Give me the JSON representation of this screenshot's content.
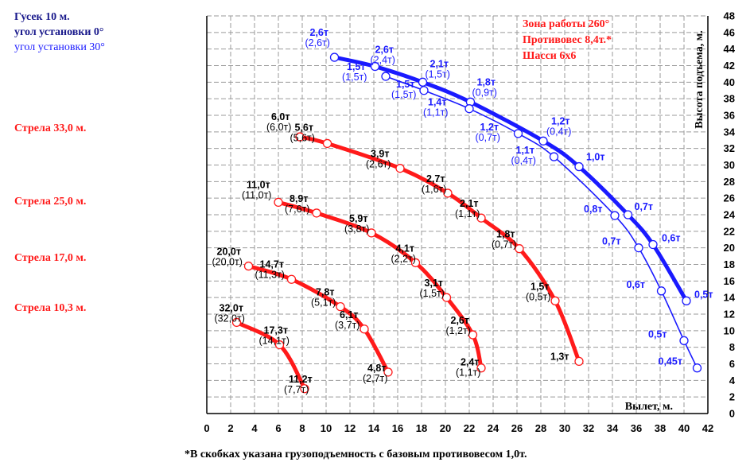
{
  "legend_left": {
    "jib_title": "Гусек 10 м.",
    "jib_angle_0": "угол установки 0°",
    "jib_angle_30": "угол установки 30°",
    "boom_33": "Стрела 33,0 м.",
    "boom_25": "Стрела 25,0 м.",
    "boom_17": "Стрела 17,0 м.",
    "boom_10": "Стрела 10,3 м."
  },
  "legend_right": {
    "zone": "Зона работы 260°",
    "counterweight": "Противовес 8,4т.*",
    "chassis": "Шасси 6х6"
  },
  "footnote": "*В скобках указана грузоподъемность с базовым противовесом 1,0т.",
  "colors": {
    "boom": "#ff1a1a",
    "jib": "#1a1aff",
    "grid": "#9a9a9a",
    "legend_blue": "#1a1a8c"
  },
  "chart_data": {
    "type": "line",
    "xlabel": "Вылет, м.",
    "ylabel": "Высота подъема, м.",
    "xlim": [
      0,
      42
    ],
    "ylim": [
      0,
      48
    ],
    "xticks": [
      0,
      2,
      4,
      6,
      8,
      10,
      12,
      14,
      16,
      18,
      20,
      22,
      24,
      26,
      28,
      30,
      32,
      34,
      36,
      38,
      40,
      42
    ],
    "yticks": [
      0,
      2,
      4,
      6,
      8,
      10,
      12,
      14,
      16,
      18,
      20,
      22,
      24,
      26,
      28,
      30,
      32,
      34,
      36,
      38,
      40,
      42,
      44,
      46,
      48
    ],
    "grid": true,
    "series": [
      {
        "name": "Стрела 10,3 м.",
        "color": "#ff1a1a",
        "width": 5,
        "points": [
          {
            "x": 2.5,
            "y": 11.0,
            "load": "32,0т",
            "alt": "(32,0т)"
          },
          {
            "x": 6.1,
            "y": 8.3,
            "load": "17,3т",
            "alt": "(14,1т)"
          },
          {
            "x": 8.2,
            "y": 3.0,
            "load": "11,2т",
            "alt": "(7,7т)"
          }
        ]
      },
      {
        "name": "Стрела 17,0 м.",
        "color": "#ff1a1a",
        "width": 5,
        "points": [
          {
            "x": 3.5,
            "y": 17.8,
            "load": "20,0т",
            "alt": "(20,0т)"
          },
          {
            "x": 7.1,
            "y": 16.2,
            "load": "14,7т",
            "alt": "(11,3т)"
          },
          {
            "x": 11.2,
            "y": 12.9,
            "load": "7,8т",
            "alt": "(5,1т)"
          },
          {
            "x": 13.2,
            "y": 10.2,
            "load": "6,1т",
            "alt": "(3,7т)"
          },
          {
            "x": 15.2,
            "y": 5.0,
            "load": "4,8т",
            "alt": "(2,7т)"
          }
        ]
      },
      {
        "name": "Стрела 25,0 м.",
        "color": "#ff1a1a",
        "width": 5,
        "points": [
          {
            "x": 6.0,
            "y": 25.5,
            "load": "11,0т",
            "alt": "(11,0т)"
          },
          {
            "x": 9.2,
            "y": 24.2,
            "load": "8,9т",
            "alt": "(7,6т)"
          },
          {
            "x": 13.8,
            "y": 21.8,
            "load": "5,9т",
            "alt": "(3,8т)"
          },
          {
            "x": 17.5,
            "y": 18.2,
            "load": "4,1т",
            "alt": "(2,2т)"
          },
          {
            "x": 20.1,
            "y": 14.0,
            "load": "3,1т",
            "alt": "(1,5т)"
          },
          {
            "x": 22.3,
            "y": 9.5,
            "load": "2,6т",
            "alt": "(1,2т)"
          },
          {
            "x": 23.0,
            "y": 5.5,
            "load": "2,4т",
            "alt": "(1,1т)"
          }
        ]
      },
      {
        "name": "Стрела 33,0 м.",
        "color": "#ff1a1a",
        "width": 5,
        "points": [
          {
            "x": 7.8,
            "y": 33.4,
            "load": "6,0т",
            "alt": "(6,0т)"
          },
          {
            "x": 10.1,
            "y": 32.6,
            "load": "5,6т",
            "alt": "(5,6т)"
          },
          {
            "x": 16.2,
            "y": 29.6,
            "load": "3,9т",
            "alt": "(2,6т)"
          },
          {
            "x": 20.2,
            "y": 26.6,
            "load": "2,7т",
            "alt": "(1,6т)"
          },
          {
            "x": 23.0,
            "y": 23.6,
            "load": "2,1т",
            "alt": "(1,1т)"
          },
          {
            "x": 26.2,
            "y": 19.9,
            "load": "1,8т",
            "alt": "(0,7т)"
          },
          {
            "x": 29.2,
            "y": 13.6,
            "load": "1,5т",
            "alt": "(0,5т)"
          },
          {
            "x": 31.2,
            "y": 6.3,
            "load": "1,3т",
            "alt": ""
          }
        ]
      },
      {
        "name": "угол установки 0°",
        "color": "#1a1aff",
        "width": 5,
        "points": [
          {
            "x": 10.7,
            "y": 43.0,
            "load": "2,6т",
            "alt": "(2,6т)"
          },
          {
            "x": 14.1,
            "y": 41.9,
            "load": "2,6т",
            "alt": "(2,4т)"
          },
          {
            "x": 18.1,
            "y": 40.0,
            "load": "2,1т",
            "alt": "(1,5т)"
          },
          {
            "x": 22.1,
            "y": 37.6,
            "load": "1,8т",
            "alt": "(0,9т)"
          },
          {
            "x": 28.2,
            "y": 32.9,
            "load": "1,2т",
            "alt": "(0,4т)"
          },
          {
            "x": 31.2,
            "y": 29.8,
            "load": "1,0т",
            "alt": ""
          },
          {
            "x": 35.3,
            "y": 24.0,
            "load": "0,7т",
            "alt": ""
          },
          {
            "x": 37.4,
            "y": 20.4,
            "load": "0,6т",
            "alt": ""
          },
          {
            "x": 40.2,
            "y": 13.6,
            "load": "0,5т",
            "alt": ""
          }
        ]
      },
      {
        "name": "угол установки 30°",
        "color": "#1a1aff",
        "width": 1.6,
        "points": [
          {
            "x": 15.0,
            "y": 40.7,
            "load": "1,5т",
            "alt": "(1,5т)"
          },
          {
            "x": 18.2,
            "y": 39.0,
            "load": "1,5т",
            "alt": "(1,5т)"
          },
          {
            "x": 22.0,
            "y": 36.8,
            "load": "1,4т",
            "alt": "(1,1т)"
          },
          {
            "x": 26.1,
            "y": 33.8,
            "load": "1,2т",
            "alt": "(0,7т)"
          },
          {
            "x": 29.1,
            "y": 31.0,
            "load": "1,1т",
            "alt": "(0,4т)"
          },
          {
            "x": 34.2,
            "y": 23.9,
            "load": "0,8т",
            "alt": ""
          },
          {
            "x": 36.2,
            "y": 20.0,
            "load": "0,7т",
            "alt": ""
          },
          {
            "x": 38.1,
            "y": 14.8,
            "load": "0,6т",
            "alt": ""
          },
          {
            "x": 40.0,
            "y": 8.8,
            "load": "0,5т",
            "alt": ""
          },
          {
            "x": 41.1,
            "y": 5.5,
            "load": "0,45т",
            "alt": ""
          }
        ]
      }
    ]
  }
}
